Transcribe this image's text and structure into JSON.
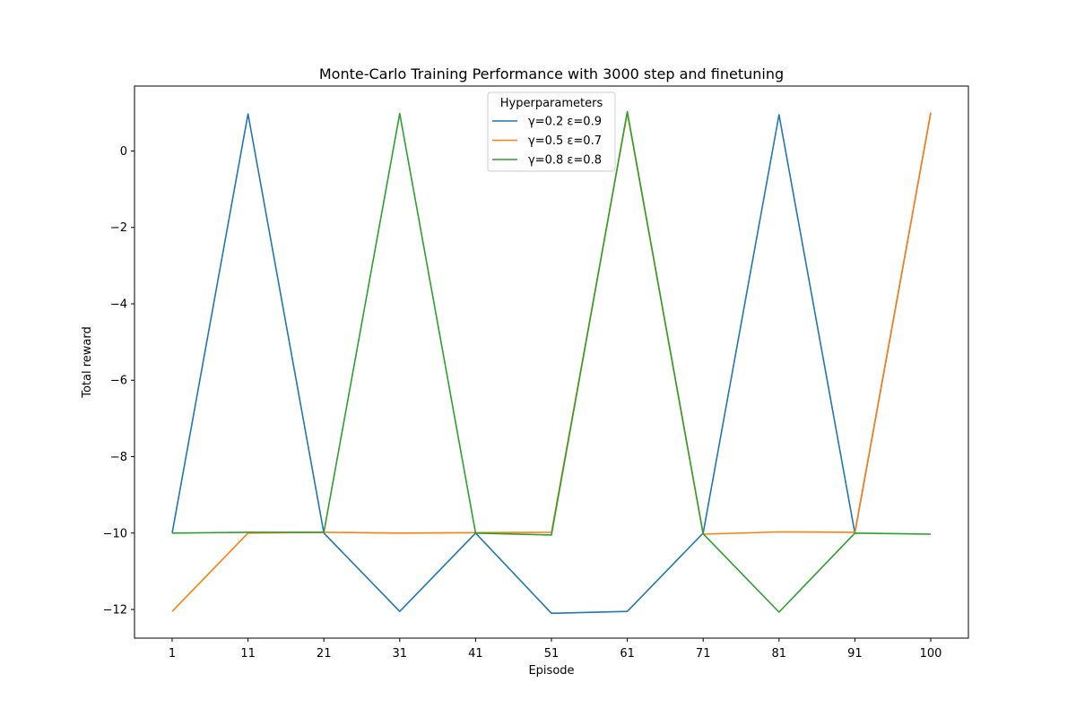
{
  "chart_data": {
    "type": "line",
    "title": "Monte-Carlo Training Performance with 3000 step and finetuning",
    "xlabel": "Episode",
    "ylabel": "Total reward",
    "categories": [
      "1",
      "11",
      "21",
      "31",
      "41",
      "51",
      "61",
      "71",
      "81",
      "91",
      "100"
    ],
    "ylim": [
      -12.75,
      1.7
    ],
    "yticks": [
      0,
      -2,
      -4,
      -6,
      -8,
      -10,
      -12
    ],
    "grid": false,
    "legend": {
      "title": "Hyperparameters",
      "placement": "upper center"
    },
    "series": [
      {
        "name": "γ=0.2 ε=0.9",
        "color": "#1f77b4",
        "values": [
          -10.0,
          0.97,
          -10.0,
          -12.05,
          -10.0,
          -12.1,
          -12.05,
          -10.0,
          0.95,
          -10.0,
          1.0
        ]
      },
      {
        "name": "γ=0.5 ε=0.7",
        "color": "#ff7f0e",
        "values": [
          -12.05,
          -10.0,
          -9.98,
          -10.0,
          -9.99,
          -9.98,
          1.0,
          -10.03,
          -9.97,
          -9.98,
          1.0
        ]
      },
      {
        "name": "γ=0.8 ε=0.8",
        "color": "#2ca02c",
        "values": [
          -10.0,
          -9.98,
          -9.98,
          0.98,
          -10.0,
          -10.05,
          1.03,
          -10.02,
          -12.07,
          -10.0,
          -10.03
        ]
      }
    ]
  }
}
